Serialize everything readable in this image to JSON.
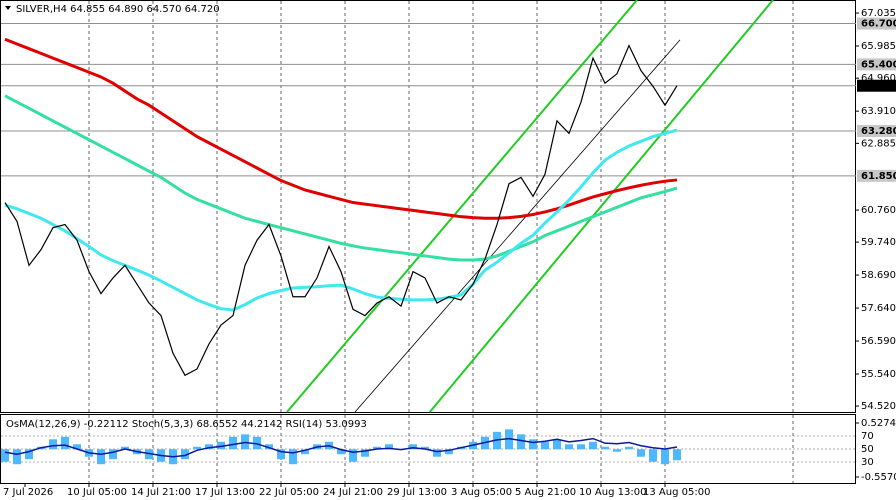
{
  "chart_data": {
    "type": "line",
    "header": "SILVER,H4  64.855 64.890 64.570 64.720",
    "ylim": [
      54.33,
      67.45
    ],
    "yticks": [
      {
        "value": 67.035,
        "label": "67.035"
      },
      {
        "value": 65.985,
        "label": "65.985"
      },
      {
        "value": 64.96,
        "label": "64.960"
      },
      {
        "value": 63.91,
        "label": "63.910"
      },
      {
        "value": 62.885,
        "label": "62.885"
      },
      {
        "value": 60.76,
        "label": "60.760"
      },
      {
        "value": 59.74,
        "label": "59.740"
      },
      {
        "value": 58.69,
        "label": "58.690"
      },
      {
        "value": 57.64,
        "label": "57.640"
      },
      {
        "value": 56.59,
        "label": "56.590"
      },
      {
        "value": 55.54,
        "label": "55.540"
      },
      {
        "value": 54.52,
        "label": "54.520"
      }
    ],
    "levels": [
      {
        "value": 66.7,
        "label": "66.700",
        "color": "#c8c8c8"
      },
      {
        "value": 65.4,
        "label": "65.400",
        "color": "#c8c8c8"
      },
      {
        "value": 64.72,
        "label": "64.720",
        "color": "#000000"
      },
      {
        "value": 63.28,
        "label": "63.280",
        "color": "#c8c8c8"
      },
      {
        "value": 61.85,
        "label": "61.850",
        "color": "#c8c8c8"
      }
    ],
    "x_labels": [
      "7 Jul 2026",
      "10 Jul 05:00",
      "14 Jul 21:00",
      "17 Jul 13:00",
      "22 Jul 05:00",
      "24 Jul 21:00",
      "29 Jul 13:00",
      "3 Aug 05:00",
      "5 Aug 21:00",
      "10 Aug 13:00",
      "13 Aug 05:00"
    ],
    "series": [
      {
        "color": "#e00000",
        "width": 3,
        "values": [
          66.2,
          66.05,
          65.9,
          65.75,
          65.6,
          65.45,
          65.3,
          65.15,
          65.0,
          64.8,
          64.55,
          64.3,
          64.1,
          63.85,
          63.6,
          63.35,
          63.1,
          62.9,
          62.7,
          62.5,
          62.3,
          62.1,
          61.9,
          61.7,
          61.55,
          61.4,
          61.3,
          61.2,
          61.1,
          61.0,
          60.95,
          60.9,
          60.85,
          60.8,
          60.75,
          60.7,
          60.65,
          60.6,
          60.55,
          60.52,
          60.5,
          60.5,
          60.52,
          60.56,
          60.62,
          60.7,
          60.8,
          60.92,
          61.05,
          61.18,
          61.28,
          61.38,
          61.47,
          61.55,
          61.62,
          61.68,
          61.72
        ]
      },
      {
        "color": "#33e0a0",
        "width": 3,
        "values": [
          64.4,
          64.2,
          64.0,
          63.8,
          63.6,
          63.4,
          63.2,
          63.0,
          62.8,
          62.6,
          62.4,
          62.2,
          62.0,
          61.8,
          61.55,
          61.3,
          61.1,
          60.95,
          60.8,
          60.65,
          60.5,
          60.4,
          60.3,
          60.2,
          60.1,
          60.0,
          59.9,
          59.8,
          59.7,
          59.62,
          59.55,
          59.5,
          59.45,
          59.4,
          59.35,
          59.3,
          59.25,
          59.2,
          59.17,
          59.17,
          59.2,
          59.3,
          59.45,
          59.6,
          59.75,
          59.95,
          60.1,
          60.25,
          60.4,
          60.55,
          60.7,
          60.85,
          61.0,
          61.15,
          61.25,
          61.35,
          61.46
        ]
      },
      {
        "color": "#40e8f0",
        "width": 3,
        "values": [
          60.92,
          60.8,
          60.65,
          60.5,
          60.3,
          60.1,
          59.85,
          59.6,
          59.33,
          59.15,
          59.0,
          58.85,
          58.69,
          58.5,
          58.3,
          58.1,
          57.9,
          57.75,
          57.62,
          57.58,
          57.75,
          57.96,
          58.1,
          58.2,
          58.28,
          58.3,
          58.32,
          58.35,
          58.37,
          58.25,
          58.1,
          57.99,
          57.95,
          57.92,
          57.9,
          57.9,
          57.92,
          57.98,
          58.06,
          58.4,
          58.85,
          59.1,
          59.4,
          59.7,
          59.96,
          60.35,
          60.7,
          61.08,
          61.5,
          61.95,
          62.35,
          62.6,
          62.8,
          62.95,
          63.1,
          63.2,
          63.31
        ]
      },
      {
        "color": "#000000",
        "width": 1.2,
        "values": [
          61.0,
          60.4,
          59.0,
          59.5,
          60.2,
          60.3,
          59.8,
          58.8,
          58.1,
          58.6,
          59.0,
          58.4,
          57.8,
          57.4,
          56.2,
          55.5,
          55.7,
          56.5,
          57.1,
          57.4,
          59.0,
          59.8,
          60.3,
          59.3,
          58.0,
          58.0,
          58.6,
          59.6,
          58.8,
          57.6,
          57.4,
          57.8,
          58.0,
          57.7,
          58.8,
          58.6,
          57.8,
          58.0,
          57.9,
          58.4,
          59.2,
          60.3,
          61.6,
          61.8,
          61.2,
          61.9,
          63.6,
          63.2,
          64.2,
          65.6,
          64.8,
          65.1,
          66.0,
          65.2,
          64.7,
          64.1,
          64.72
        ]
      }
    ],
    "trend_lines": [
      {
        "color": "#22cc22",
        "x": [
          23.5,
          52.67
        ],
        "y": [
          54.33,
          67.45
        ]
      },
      {
        "color": "#22cc22",
        "x": [
          35.4,
          64.0
        ],
        "y": [
          54.33,
          67.45
        ]
      },
      {
        "color": "#000000",
        "x": [
          29.17,
          56.25
        ],
        "y": [
          54.33,
          66.18
        ]
      }
    ],
    "oscillator": {
      "header": "OsMA(12,26,9) -0.22112  Stoch(5,3,3) 68.6552 44.2142  RSI(14) 53.0993",
      "osma_ylim": [
        -0.55703,
        0.52749
      ],
      "osma_yticks": [
        0.52749,
        -0.55703
      ],
      "osma_color": "#4db8ff",
      "osma": [
        -0.25,
        -0.3,
        -0.2,
        0.05,
        0.2,
        0.25,
        0.1,
        -0.15,
        -0.3,
        -0.2,
        0.05,
        -0.1,
        -0.2,
        -0.25,
        -0.3,
        -0.2,
        0.05,
        0.1,
        0.15,
        0.25,
        0.3,
        0.25,
        0.1,
        -0.2,
        -0.3,
        -0.1,
        0.1,
        0.15,
        -0.1,
        -0.25,
        -0.15,
        0.05,
        0.1,
        0.0,
        0.1,
        0.05,
        -0.15,
        -0.1,
        0.05,
        0.15,
        0.25,
        0.35,
        0.4,
        0.3,
        0.2,
        0.15,
        0.2,
        0.1,
        0.1,
        0.15,
        0.05,
        -0.05,
        0.05,
        -0.15,
        -0.25,
        -0.3,
        -0.22112
      ],
      "rsi_ylim": [
        0,
        100
      ],
      "rsi_yticks": [
        70,
        50,
        30
      ],
      "rsi_color": "#0a1a9a",
      "rsi": [
        45,
        42,
        46,
        52,
        55,
        56,
        50,
        44,
        42,
        45,
        50,
        46,
        43,
        40,
        38,
        40,
        48,
        52,
        54,
        57,
        60,
        58,
        52,
        46,
        44,
        48,
        53,
        55,
        49,
        45,
        47,
        50,
        51,
        49,
        52,
        50,
        46,
        48,
        52,
        56,
        60,
        64,
        66,
        63,
        60,
        62,
        65,
        61,
        63,
        66,
        59,
        58,
        60,
        55,
        52,
        50,
        53.0993
      ]
    }
  }
}
